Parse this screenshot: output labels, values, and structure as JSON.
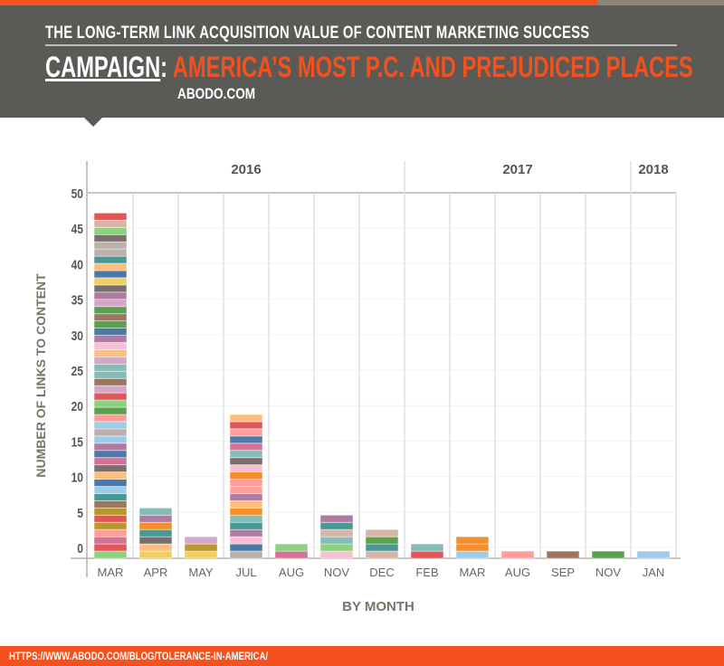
{
  "header": {
    "title": "THE LONG-TERM LINK ACQUISITION VALUE OF CONTENT MARKETING SUCCESS",
    "campaign_label": "CAMPAIGN",
    "campaign_sep": ":",
    "campaign_name": "AMERICA’S MOST P.C. AND PREJUDICED PLACES",
    "site": "ABODO.COM"
  },
  "footer": {
    "url": "HTTPS://WWW.ABODO.COM/BLOG/TOLERANCE-IN-AMERICA/"
  },
  "chart_data": {
    "type": "bar",
    "stacked": true,
    "xlabel": "BY MONTH",
    "ylabel": "NUMBER OF LINKS TO CONTENT",
    "ylim": [
      0,
      50
    ],
    "yticks": [
      0,
      5,
      10,
      15,
      20,
      25,
      30,
      35,
      40,
      45,
      50
    ],
    "grid": true,
    "years": [
      {
        "label": "2016",
        "span": 7
      },
      {
        "label": "2017",
        "span": 5
      },
      {
        "label": "2018",
        "span": 1
      }
    ],
    "categories": [
      "MAR",
      "APR",
      "MAY",
      "JUL",
      "AUG",
      "NOV",
      "DEC",
      "FEB",
      "MAR",
      "AUG",
      "SEP",
      "NOV",
      "JAN"
    ],
    "values": [
      48,
      7,
      3,
      20,
      2,
      6,
      4,
      2,
      3,
      1,
      1,
      1,
      1
    ],
    "segments": [
      [
        "#8cd17d",
        "#e15759",
        "#d37295",
        "#ff9d9a",
        "#b6992d",
        "#e15759",
        "#b6992d",
        "#9d7660",
        "#499894",
        "#a0cbe8",
        "#4e79a7",
        "#ffbe7d",
        "#79706e",
        "#d37295",
        "#4e79a7",
        "#b07aa1",
        "#a0cbe8",
        "#bab0ac",
        "#a0cbe8",
        "#ff9d9a",
        "#59a14f",
        "#8cd17d",
        "#e15759",
        "#d4a6c8",
        "#9d7660",
        "#86bcb6",
        "#86bcb6",
        "#d4a6c8",
        "#ffbe7d",
        "#fabfd2",
        "#b07aa1",
        "#4e79a7",
        "#59a14f",
        "#9d7660",
        "#59a14f",
        "#d4a6c8",
        "#b07aa1",
        "#79706e",
        "#f1ce63",
        "#4e79a7",
        "#ffbe7d",
        "#499894",
        "#bab0ac",
        "#bab0ac",
        "#79706e",
        "#8cd17d",
        "#d7b5a6",
        "#e15759"
      ],
      [
        "#f1ce63",
        "#ffbe7d",
        "#79706e",
        "#499894",
        "#f28e2b",
        "#b07aa1",
        "#86bcb6"
      ],
      [
        "#f1ce63",
        "#b6992d",
        "#d4a6c8"
      ],
      [
        "#bab0ac",
        "#4e79a7",
        "#fabfd2",
        "#b07aa1",
        "#499894",
        "#86bcb6",
        "#f28e2b",
        "#ffbe7d",
        "#b07aa1",
        "#ff9d9a",
        "#ff9d9a",
        "#f28e2b",
        "#fabfd2",
        "#79706e",
        "#86bcb6",
        "#d37295",
        "#4e79a7",
        "#ff9d9a",
        "#e15759",
        "#ffbe7d"
      ],
      [
        "#d37295",
        "#8cd17d"
      ],
      [
        "#fabfd2",
        "#8cd17d",
        "#86bcb6",
        "#d7b5a6",
        "#499894",
        "#b07aa1"
      ],
      [
        "#d7b5a6",
        "#499894",
        "#59a14f",
        "#d7b5a6"
      ],
      [
        "#e15759",
        "#86bcb6"
      ],
      [
        "#a0cbe8",
        "#f28e2b",
        "#f28e2b"
      ],
      [
        "#ff9d9a"
      ],
      [
        "#9d7660"
      ],
      [
        "#59a14f"
      ],
      [
        "#a0cbe8"
      ]
    ]
  }
}
